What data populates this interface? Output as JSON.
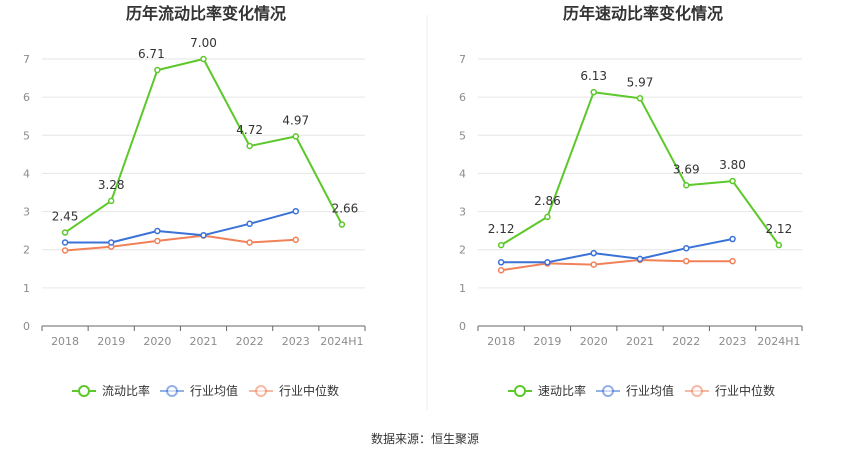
{
  "chart_data": [
    {
      "type": "line",
      "title": "历年流动比率变化情况",
      "categories": [
        "2018",
        "2019",
        "2020",
        "2021",
        "2022",
        "2023",
        "2024H1"
      ],
      "ylim": [
        0,
        7
      ],
      "yticks": [
        "0",
        "1",
        "2",
        "3",
        "4",
        "5",
        "6",
        "7"
      ],
      "grid": true,
      "legend_position": "bottom",
      "series": [
        {
          "name": "流动比率",
          "color": "#5cc82a",
          "values": [
            2.45,
            3.28,
            6.71,
            7.0,
            4.72,
            4.97,
            2.66
          ],
          "labels": [
            "2.45",
            "3.28",
            "6.71",
            "7.00",
            "4.72",
            "4.97",
            "2.66"
          ]
        },
        {
          "name": "行业均值",
          "color": "#3a72d8",
          "values": [
            2.19,
            2.19,
            2.49,
            2.38,
            2.68,
            3.01,
            null
          ]
        },
        {
          "name": "行业中位数",
          "color": "#f08158",
          "values": [
            1.98,
            2.08,
            2.23,
            2.37,
            2.19,
            2.26,
            null
          ]
        }
      ]
    },
    {
      "type": "line",
      "title": "历年速动比率变化情况",
      "categories": [
        "2018",
        "2019",
        "2020",
        "2021",
        "2022",
        "2023",
        "2024H1"
      ],
      "ylim": [
        0,
        7
      ],
      "yticks": [
        "0",
        "1",
        "2",
        "3",
        "4",
        "5",
        "6",
        "7"
      ],
      "grid": true,
      "legend_position": "bottom",
      "series": [
        {
          "name": "速动比率",
          "color": "#5cc82a",
          "values": [
            2.12,
            2.86,
            6.13,
            5.97,
            3.69,
            3.8,
            2.12
          ],
          "labels": [
            "2.12",
            "2.86",
            "6.13",
            "5.97",
            "3.69",
            "3.80",
            "2.12"
          ]
        },
        {
          "name": "行业均值",
          "color": "#3a72d8",
          "values": [
            1.67,
            1.67,
            1.91,
            1.76,
            2.04,
            2.28,
            null
          ]
        },
        {
          "name": "行业中位数",
          "color": "#f08158",
          "values": [
            1.46,
            1.64,
            1.61,
            1.73,
            1.7,
            1.7,
            null
          ]
        }
      ]
    }
  ],
  "source_text": "数据来源：恒生聚源"
}
